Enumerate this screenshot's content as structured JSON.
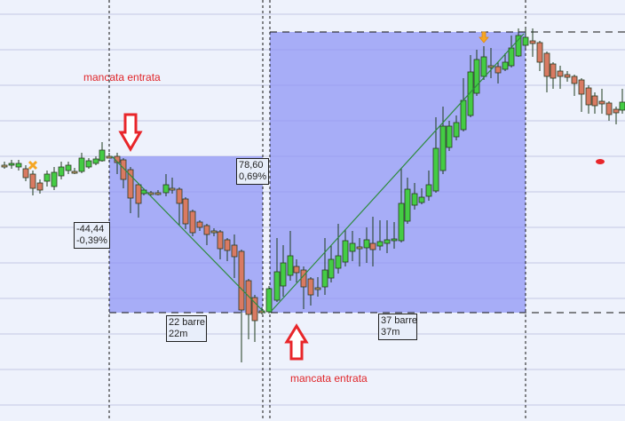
{
  "colors": {
    "up": "#44cc44",
    "down": "#d97a62",
    "box": "#8c92f5",
    "trend": "#2e8b3e",
    "arrow": "#e8262a",
    "marker": "#f5a623"
  },
  "annotations": {
    "note_top": "mancata entrata",
    "note_bottom": "mancata entrata",
    "move1": {
      "points": "-44,44",
      "percent": "-0,39%",
      "bars": "22 barre",
      "time": "22m"
    },
    "move2": {
      "points": "78,60",
      "percent": "0,69%",
      "bars": "37 barre",
      "time": "37m"
    }
  },
  "icons": {
    "entry_down": "red-down-arrow-icon",
    "entry_up": "red-up-arrow-icon",
    "cross": "orange-x-marker-icon",
    "exit": "orange-down-arrow-icon",
    "dot": "red-dot-marker-icon"
  }
}
